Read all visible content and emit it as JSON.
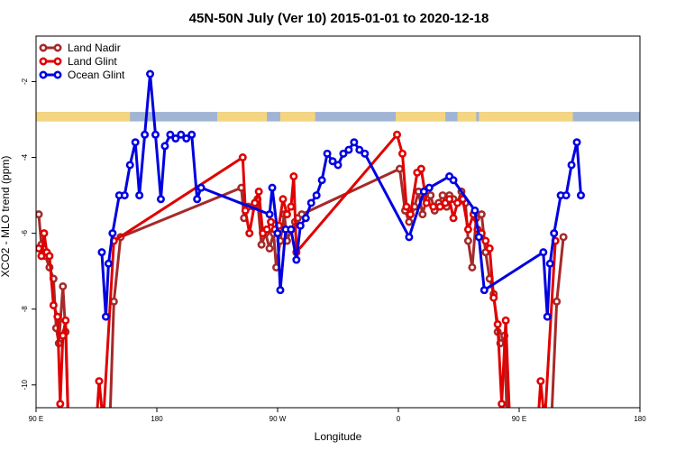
{
  "chart_data": {
    "type": "line",
    "title": "45N-50N July (Ver 10)   2015-01-01 to 2020-12-18",
    "xlabel": "Longitude",
    "ylabel": "XCO2 - MLO trend (ppm)",
    "x_tick_values": [
      90,
      180,
      270,
      360,
      450,
      540
    ],
    "x_tick_labels": [
      "90 E",
      "180",
      "90 W",
      "0",
      "90 E",
      "180"
    ],
    "xlim": [
      90,
      540
    ],
    "y_ticks": [
      -2,
      -4,
      -6,
      -8,
      -10
    ],
    "ylim": [
      -10.6,
      -0.8
    ],
    "grid": false,
    "legend_position": "top-left",
    "map_band": {
      "y_top": -2.8,
      "y_bottom": -3.05,
      "ocean_color": "#a0b4d4",
      "land_color": "#f5d580"
    },
    "series": [
      {
        "name": "Land Nadir",
        "color": "#a52a2a",
        "points": [
          [
            92,
            -5.5
          ],
          [
            94,
            -6.3
          ],
          [
            97,
            -6.6
          ],
          [
            100,
            -6.9
          ],
          [
            103,
            -7.2
          ],
          [
            105,
            -8.5
          ],
          [
            107,
            -8.9
          ],
          [
            110,
            -7.4
          ],
          [
            112,
            -8.6
          ],
          [
            114,
            -11.0
          ],
          [
            145,
            -11.0
          ],
          [
            148,
            -7.8
          ],
          [
            153,
            -6.1
          ],
          [
            243,
            -4.8
          ],
          [
            245,
            -5.6
          ],
          [
            248,
            -5.3
          ],
          [
            252,
            -5.3
          ],
          [
            255,
            -5.1
          ],
          [
            258,
            -6.3
          ],
          [
            261,
            -6.0
          ],
          [
            264,
            -6.4
          ],
          [
            267,
            -6.0
          ],
          [
            269,
            -6.9
          ],
          [
            272,
            -6.2
          ],
          [
            275,
            -5.5
          ],
          [
            277,
            -6.2
          ],
          [
            280,
            -5.9
          ],
          [
            283,
            -5.7
          ],
          [
            285,
            -5.6
          ],
          [
            288,
            -5.5
          ],
          [
            361,
            -4.3
          ],
          [
            365,
            -5.4
          ],
          [
            368,
            -5.7
          ],
          [
            372,
            -5.3
          ],
          [
            375,
            -4.9
          ],
          [
            378,
            -5.5
          ],
          [
            381,
            -5.1
          ],
          [
            384,
            -5.0
          ],
          [
            387,
            -5.4
          ],
          [
            390,
            -5.2
          ],
          [
            393,
            -5.0
          ],
          [
            396,
            -5.3
          ],
          [
            398,
            -5.0
          ],
          [
            401,
            -5.1
          ],
          [
            404,
            -5.2
          ],
          [
            407,
            -4.9
          ],
          [
            410,
            -5.2
          ],
          [
            412,
            -6.2
          ],
          [
            415,
            -6.9
          ],
          [
            418,
            -5.6
          ],
          [
            422,
            -5.5
          ],
          [
            425,
            -6.5
          ],
          [
            428,
            -7.2
          ],
          [
            431,
            -7.6
          ],
          [
            434,
            -8.6
          ],
          [
            436,
            -8.9
          ],
          [
            439,
            -8.7
          ],
          [
            441,
            -11.0
          ],
          [
            474,
            -11.0
          ],
          [
            478,
            -7.8
          ],
          [
            483,
            -6.1
          ]
        ]
      },
      {
        "name": "Land Glint",
        "color": "#e00000",
        "points": [
          [
            92,
            -6.4
          ],
          [
            94,
            -6.6
          ],
          [
            96,
            -6.0
          ],
          [
            98,
            -6.5
          ],
          [
            100,
            -6.6
          ],
          [
            103,
            -7.9
          ],
          [
            106,
            -8.2
          ],
          [
            108,
            -10.5
          ],
          [
            110,
            -8.7
          ],
          [
            112,
            -8.3
          ],
          [
            114,
            -11.0
          ],
          [
            135,
            -11.0
          ],
          [
            137,
            -9.9
          ],
          [
            140,
            -11.0
          ],
          [
            148,
            -6.2
          ],
          [
            244,
            -4.0
          ],
          [
            246,
            -5.4
          ],
          [
            249,
            -6.0
          ],
          [
            253,
            -5.2
          ],
          [
            256,
            -4.9
          ],
          [
            259,
            -6.0
          ],
          [
            262,
            -5.9
          ],
          [
            265,
            -5.7
          ],
          [
            268,
            -5.9
          ],
          [
            271,
            -5.8
          ],
          [
            274,
            -5.1
          ],
          [
            277,
            -5.5
          ],
          [
            280,
            -5.3
          ],
          [
            282,
            -4.5
          ],
          [
            284,
            -6.5
          ],
          [
            359,
            -3.4
          ],
          [
            363,
            -3.9
          ],
          [
            366,
            -5.3
          ],
          [
            369,
            -5.5
          ],
          [
            374,
            -4.4
          ],
          [
            377,
            -4.3
          ],
          [
            381,
            -5.2
          ],
          [
            386,
            -5.3
          ],
          [
            391,
            -5.3
          ],
          [
            395,
            -5.2
          ],
          [
            398,
            -5.1
          ],
          [
            401,
            -5.6
          ],
          [
            404,
            -5.2
          ],
          [
            408,
            -5.1
          ],
          [
            412,
            -5.9
          ],
          [
            416,
            -5.5
          ],
          [
            419,
            -5.9
          ],
          [
            422,
            -6.0
          ],
          [
            425,
            -6.2
          ],
          [
            428,
            -6.4
          ],
          [
            431,
            -7.7
          ],
          [
            434,
            -8.4
          ],
          [
            437,
            -10.5
          ],
          [
            440,
            -8.3
          ],
          [
            443,
            -11.0
          ],
          [
            464,
            -11.0
          ],
          [
            466,
            -9.9
          ],
          [
            469,
            -11.0
          ],
          [
            477,
            -6.2
          ]
        ]
      },
      {
        "name": "Ocean Glint",
        "color": "#0000e0",
        "points": [
          [
            139,
            -6.5
          ],
          [
            142,
            -8.2
          ],
          [
            144,
            -6.8
          ],
          [
            147,
            -6.0
          ],
          [
            152,
            -5.0
          ],
          [
            156,
            -5.0
          ],
          [
            160,
            -4.2
          ],
          [
            164,
            -3.6
          ],
          [
            167,
            -5.0
          ],
          [
            171,
            -3.4
          ],
          [
            175,
            -1.8
          ],
          [
            179,
            -3.4
          ],
          [
            183,
            -5.1
          ],
          [
            186,
            -3.7
          ],
          [
            190,
            -3.4
          ],
          [
            194,
            -3.5
          ],
          [
            198,
            -3.4
          ],
          [
            202,
            -3.5
          ],
          [
            206,
            -3.4
          ],
          [
            210,
            -5.1
          ],
          [
            213,
            -4.8
          ],
          [
            264,
            -5.5
          ],
          [
            266,
            -4.8
          ],
          [
            270,
            -6.0
          ],
          [
            272,
            -7.5
          ],
          [
            276,
            -5.9
          ],
          [
            280,
            -5.9
          ],
          [
            284,
            -6.7
          ],
          [
            287,
            -5.8
          ],
          [
            291,
            -5.6
          ],
          [
            295,
            -5.2
          ],
          [
            299,
            -5.0
          ],
          [
            303,
            -4.6
          ],
          [
            307,
            -3.9
          ],
          [
            311,
            -4.1
          ],
          [
            315,
            -4.2
          ],
          [
            319,
            -3.9
          ],
          [
            323,
            -3.8
          ],
          [
            327,
            -3.6
          ],
          [
            331,
            -3.8
          ],
          [
            335,
            -3.9
          ],
          [
            368,
            -6.1
          ],
          [
            379,
            -4.9
          ],
          [
            383,
            -4.8
          ],
          [
            398,
            -4.5
          ],
          [
            401,
            -4.6
          ],
          [
            417,
            -5.4
          ],
          [
            420,
            -6.1
          ],
          [
            424,
            -7.5
          ],
          [
            468,
            -6.5
          ],
          [
            471,
            -8.2
          ],
          [
            473,
            -6.8
          ],
          [
            476,
            -6.0
          ],
          [
            481,
            -5.0
          ],
          [
            485,
            -5.0
          ],
          [
            489,
            -4.2
          ],
          [
            493,
            -3.6
          ],
          [
            496,
            -5.0
          ]
        ]
      }
    ]
  }
}
